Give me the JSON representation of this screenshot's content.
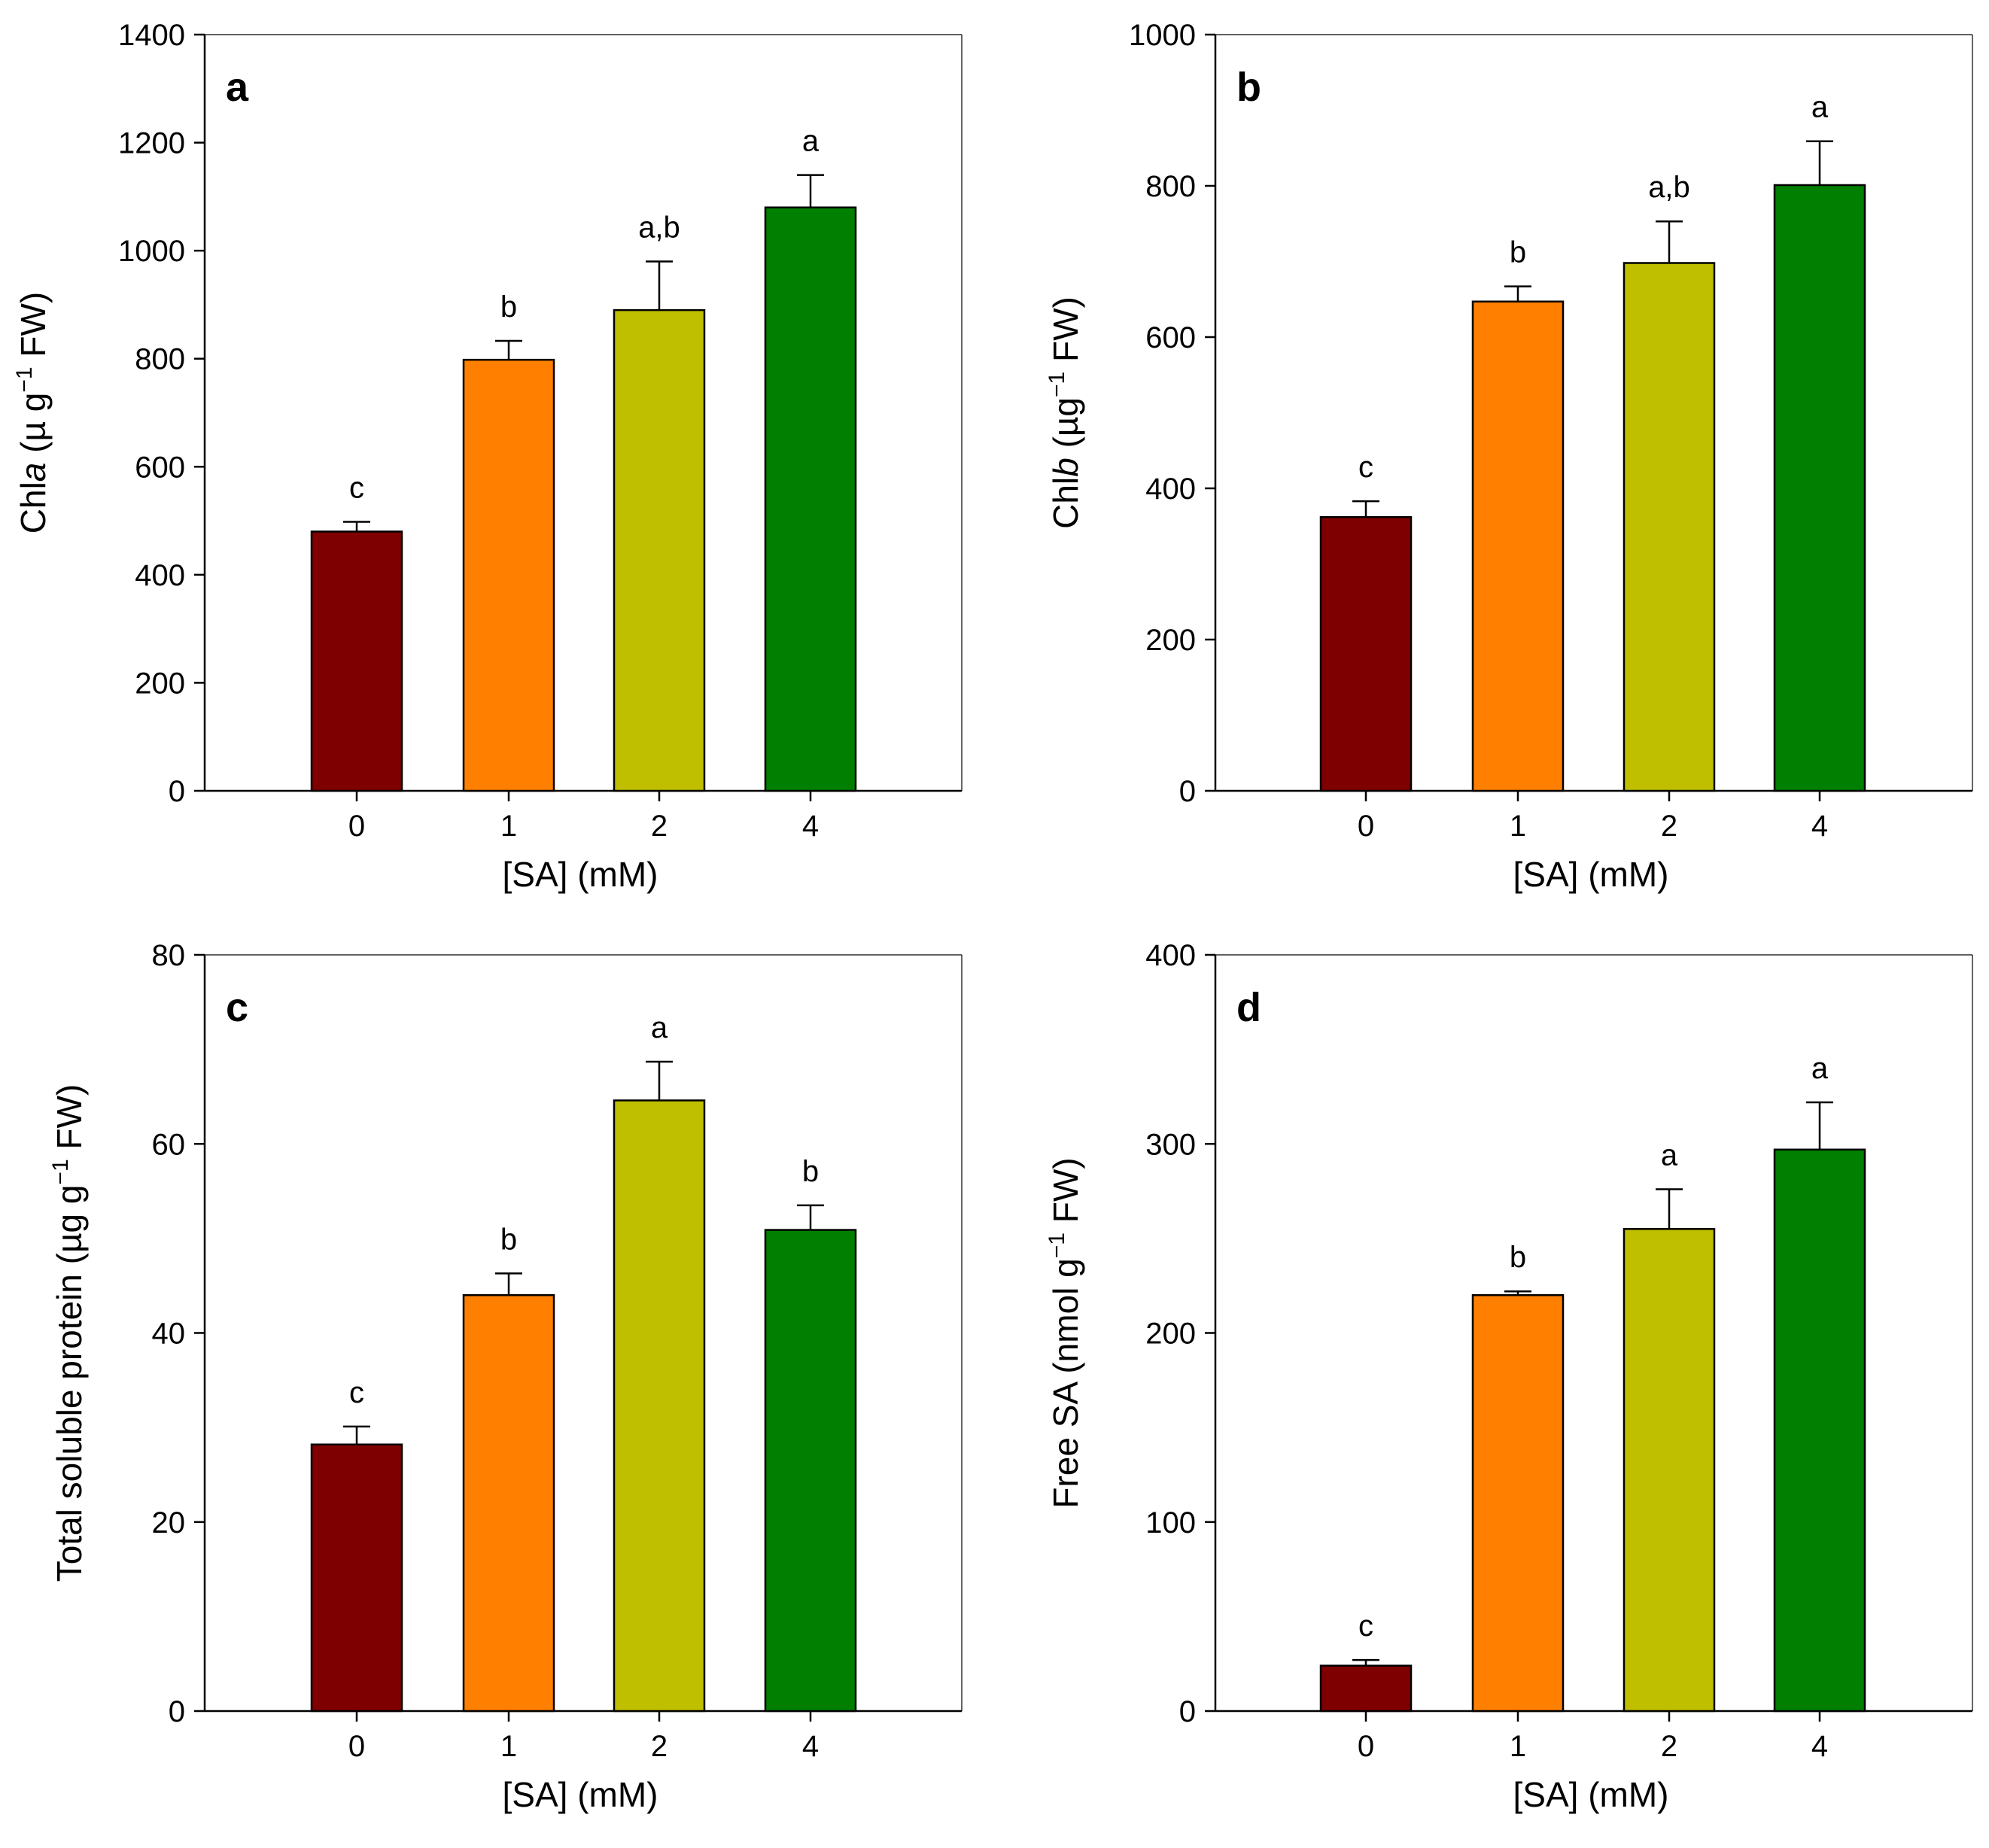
{
  "chart_data": [
    {
      "type": "bar",
      "panel": "a",
      "ylabel_parts": [
        "Chl",
        "a",
        " (µ g",
        "−1",
        " FW)"
      ],
      "xlabel": "[SA] (mM)",
      "ylim": [
        0,
        1400
      ],
      "yticks": [
        "0",
        "200",
        "400",
        "600",
        "800",
        "1000",
        "1200",
        "1400"
      ],
      "categories": [
        "0",
        "1",
        "2",
        "4"
      ],
      "values": [
        480,
        798,
        890,
        1080
      ],
      "errors": [
        18,
        35,
        90,
        60
      ],
      "letters": [
        "c",
        "b",
        "a,b",
        "a"
      ],
      "colors": [
        "#7f0000",
        "#ff7f00",
        "#bfbf00",
        "#007f00"
      ]
    },
    {
      "type": "bar",
      "panel": "b",
      "ylabel_parts": [
        "Chl",
        "b",
        " (µg",
        "−1",
        " FW)"
      ],
      "xlabel": "[SA] (mM)",
      "ylim": [
        0,
        1000
      ],
      "yticks": [
        "0",
        "200",
        "400",
        "600",
        "800",
        "1000"
      ],
      "categories": [
        "0",
        "1",
        "2",
        "4"
      ],
      "values": [
        362,
        647,
        698,
        801
      ],
      "errors": [
        21,
        20,
        55,
        58
      ],
      "letters": [
        "c",
        "b",
        "a,b",
        "a"
      ],
      "colors": [
        "#7f0000",
        "#ff7f00",
        "#bfbf00",
        "#007f00"
      ]
    },
    {
      "type": "bar",
      "panel": "c",
      "ylabel_parts": [
        "Total soluble protein (µg g",
        "",
        "",
        "−1",
        " FW)"
      ],
      "xlabel": "[SA] (mM)",
      "ylim": [
        0,
        80
      ],
      "yticks": [
        "0",
        "20",
        "40",
        "60",
        "80"
      ],
      "categories": [
        "0",
        "1",
        "2",
        "4"
      ],
      "values": [
        28.2,
        44.0,
        64.6,
        50.9
      ],
      "errors": [
        1.9,
        2.3,
        4.1,
        2.6
      ],
      "letters": [
        "c",
        "b",
        "a",
        "b"
      ],
      "colors": [
        "#7f0000",
        "#ff7f00",
        "#bfbf00",
        "#007f00"
      ]
    },
    {
      "type": "bar",
      "panel": "d",
      "ylabel_parts": [
        "Free SA (nmol g",
        "",
        "",
        "−1",
        " FW)"
      ],
      "xlabel": "[SA] (mM)",
      "ylim": [
        0,
        400
      ],
      "yticks": [
        "0",
        "100",
        "200",
        "300",
        "400"
      ],
      "categories": [
        "0",
        "1",
        "2",
        "4"
      ],
      "values": [
        24,
        220,
        255,
        297
      ],
      "errors": [
        3,
        2,
        21,
        25
      ],
      "letters": [
        "c",
        "b",
        "a",
        "a"
      ],
      "colors": [
        "#7f0000",
        "#ff7f00",
        "#bfbf00",
        "#007f00"
      ]
    }
  ]
}
